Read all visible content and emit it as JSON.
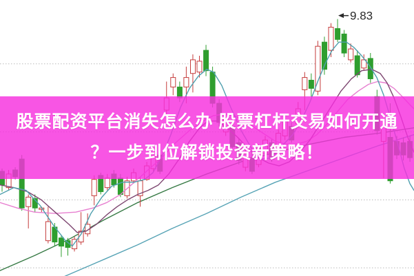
{
  "banner": {
    "line1": "股票配资平台消失怎么办 股票杠杆交易如何开通",
    "line2": "？一步到位解锁投资新策略！",
    "bg_color": "#f730de",
    "text_color": "#ffffff"
  },
  "chart_data": {
    "type": "candlestick",
    "title": "",
    "xlabel": "",
    "ylabel": "",
    "ylim": [
      7.94,
      9.97
    ],
    "gridline_prices": [
      9.5,
      9.0,
      8.5,
      8.0
    ],
    "grid_style": "dotted",
    "legend": "none",
    "x_start": 3,
    "x_step": 9.55,
    "high_label": {
      "text": "9.83",
      "candle_index": 51
    },
    "colors": {
      "up": "#c53b3b",
      "down": "#2f9e2f",
      "ma_short_teal": "#4f9fae",
      "ma_mid_purple": "#7d4670",
      "ma_pink": "#e77fd0",
      "ma_dark_green": "#377a45",
      "ma_long_teal": "#56a3b5",
      "grid": "#b9b9b9",
      "label": "#2a2a2a"
    },
    "candles": [
      [
        8.71,
        8.73,
        8.56,
        8.61,
        "d"
      ],
      [
        8.59,
        8.72,
        8.57,
        8.69,
        "u"
      ],
      [
        8.72,
        8.74,
        8.65,
        8.67,
        "d"
      ],
      [
        8.8,
        8.83,
        8.42,
        8.44,
        "d"
      ],
      [
        8.45,
        8.54,
        8.29,
        8.52,
        "u"
      ],
      [
        8.51,
        8.54,
        8.41,
        8.44,
        "d"
      ],
      [
        8.43,
        8.45,
        8.41,
        8.44,
        "u"
      ],
      [
        8.2,
        8.45,
        8.18,
        8.34,
        "u"
      ],
      [
        8.3,
        8.33,
        8.16,
        8.19,
        "d"
      ],
      [
        8.22,
        8.24,
        8.08,
        8.16,
        "d"
      ],
      [
        8.2,
        8.22,
        8.09,
        8.15,
        "d"
      ],
      [
        8.14,
        8.23,
        8.12,
        8.21,
        "u"
      ],
      [
        8.19,
        8.41,
        8.17,
        8.27,
        "u"
      ],
      [
        8.25,
        8.4,
        8.23,
        8.32,
        "u"
      ],
      [
        8.53,
        8.68,
        8.46,
        8.65,
        "u"
      ],
      [
        8.68,
        8.7,
        8.54,
        8.56,
        "d"
      ],
      [
        8.59,
        8.69,
        8.57,
        8.66,
        "u"
      ],
      [
        8.69,
        8.72,
        8.59,
        8.61,
        "d"
      ],
      [
        8.66,
        8.69,
        8.52,
        8.54,
        "d"
      ],
      [
        8.53,
        8.67,
        8.51,
        8.64,
        "u"
      ],
      [
        8.64,
        8.73,
        8.62,
        8.7,
        "u"
      ],
      [
        8.53,
        8.67,
        8.45,
        8.64,
        "u"
      ],
      [
        8.65,
        8.78,
        8.64,
        8.75,
        "u"
      ],
      [
        8.73,
        8.85,
        8.71,
        8.82,
        "u"
      ],
      [
        8.83,
        8.86,
        8.69,
        8.71,
        "d"
      ],
      [
        9.16,
        9.37,
        9.13,
        9.25,
        "u"
      ],
      [
        9.33,
        9.43,
        9.27,
        9.4,
        "u"
      ],
      [
        9.33,
        9.37,
        9.22,
        9.25,
        "d"
      ],
      [
        9.33,
        9.48,
        9.21,
        9.4,
        "u"
      ],
      [
        9.43,
        9.57,
        9.29,
        9.53,
        "u"
      ],
      [
        9.44,
        9.56,
        9.4,
        9.52,
        "u"
      ],
      [
        9.6,
        9.64,
        9.41,
        9.45,
        "d"
      ],
      [
        9.44,
        9.48,
        9.18,
        9.21,
        "d"
      ],
      [
        9.21,
        9.24,
        9.04,
        9.07,
        "d"
      ],
      [
        9.0,
        9.13,
        8.97,
        9.1,
        "u"
      ],
      [
        9.04,
        9.07,
        8.87,
        8.89,
        "d"
      ],
      [
        8.92,
        8.95,
        8.76,
        8.79,
        "d"
      ],
      [
        8.74,
        8.87,
        8.71,
        8.84,
        "u"
      ],
      [
        8.81,
        8.85,
        8.69,
        8.71,
        "d"
      ],
      [
        8.76,
        8.91,
        8.74,
        8.88,
        "u"
      ],
      [
        8.84,
        8.97,
        8.81,
        8.94,
        "u"
      ],
      [
        8.92,
        8.95,
        8.78,
        8.8,
        "d"
      ],
      [
        8.89,
        9.02,
        8.87,
        8.99,
        "u"
      ],
      [
        8.97,
        9.11,
        8.94,
        9.08,
        "u"
      ],
      [
        9.04,
        9.07,
        8.92,
        8.94,
        "d"
      ],
      [
        9.06,
        9.22,
        9.03,
        9.17,
        "u"
      ],
      [
        9.31,
        9.44,
        9.16,
        9.4,
        "u"
      ],
      [
        9.38,
        9.43,
        9.26,
        9.32,
        "d"
      ],
      [
        9.3,
        9.67,
        9.27,
        9.63,
        "u"
      ],
      [
        9.66,
        9.7,
        9.42,
        9.46,
        "d"
      ],
      [
        9.6,
        9.8,
        9.55,
        9.77,
        "u"
      ],
      [
        9.76,
        9.83,
        9.66,
        9.68,
        "d"
      ],
      [
        9.72,
        9.75,
        9.55,
        9.58,
        "d"
      ],
      [
        9.53,
        9.65,
        9.51,
        9.61,
        "u"
      ],
      [
        9.56,
        9.6,
        9.4,
        9.42,
        "d"
      ],
      [
        9.47,
        9.57,
        9.45,
        9.53,
        "u"
      ],
      [
        9.54,
        9.58,
        9.36,
        9.39,
        "d"
      ],
      [
        9.26,
        9.31,
        8.98,
        9.01,
        "d"
      ],
      [
        8.93,
        9.08,
        8.66,
        9.04,
        "u"
      ],
      [
        8.96,
        9.21,
        8.62,
        8.64,
        "d"
      ],
      [
        8.93,
        8.97,
        8.8,
        8.83,
        "d"
      ],
      [
        8.92,
        8.96,
        8.79,
        8.83,
        "d"
      ],
      [
        8.93,
        8.97,
        8.78,
        8.81,
        "d"
      ]
    ],
    "ma_series": [
      {
        "name": "ma-dark-green",
        "color_key": "ma_dark_green",
        "points": [
          [
            0,
            7.98
          ],
          [
            50,
            8.09
          ],
          [
            100,
            8.21
          ],
          [
            150,
            8.35
          ],
          [
            200,
            8.48
          ],
          [
            250,
            8.59
          ],
          [
            300,
            8.69
          ],
          [
            350,
            8.78
          ],
          [
            400,
            8.85
          ],
          [
            450,
            8.91
          ],
          [
            500,
            8.96
          ],
          [
            550,
            8.99
          ],
          [
            601,
            9.03
          ]
        ]
      },
      {
        "name": "ma-long-teal",
        "color_key": "ma_long_teal",
        "points": [
          [
            70,
            7.88
          ],
          [
            95,
            7.94
          ],
          [
            150,
            8.06
          ],
          [
            200,
            8.17
          ],
          [
            250,
            8.29
          ],
          [
            300,
            8.4
          ],
          [
            350,
            8.52
          ],
          [
            400,
            8.63
          ],
          [
            450,
            8.72
          ],
          [
            500,
            8.81
          ],
          [
            550,
            8.9
          ],
          [
            601,
            8.98
          ]
        ]
      },
      {
        "name": "ma-pink",
        "color_key": "ma_pink",
        "points": [
          [
            0,
            8.48
          ],
          [
            25,
            8.44
          ],
          [
            50,
            8.41
          ],
          [
            80,
            8.4
          ],
          [
            110,
            8.41
          ],
          [
            135,
            8.44
          ],
          [
            155,
            8.48
          ],
          [
            175,
            8.54
          ],
          [
            195,
            8.63
          ],
          [
            215,
            8.72
          ],
          [
            235,
            8.81
          ],
          [
            255,
            8.92
          ],
          [
            275,
            9.01
          ],
          [
            295,
            9.08
          ],
          [
            310,
            9.12
          ],
          [
            325,
            9.13
          ],
          [
            340,
            9.12
          ],
          [
            355,
            9.08
          ],
          [
            370,
            9.03
          ],
          [
            385,
            8.98
          ],
          [
            400,
            8.93
          ],
          [
            415,
            8.91
          ],
          [
            430,
            8.91
          ],
          [
            445,
            8.93
          ],
          [
            460,
            8.98
          ],
          [
            475,
            9.06
          ],
          [
            490,
            9.15
          ],
          [
            505,
            9.24
          ],
          [
            520,
            9.3
          ],
          [
            535,
            9.35
          ],
          [
            548,
            9.37
          ],
          [
            560,
            9.36
          ],
          [
            572,
            9.32
          ],
          [
            584,
            9.26
          ],
          [
            595,
            9.2
          ],
          [
            601,
            9.17
          ]
        ]
      },
      {
        "name": "ma-mid-purple",
        "color_key": "ma_mid_purple",
        "points": [
          [
            0,
            8.61
          ],
          [
            20,
            8.59
          ],
          [
            40,
            8.56
          ],
          [
            60,
            8.5
          ],
          [
            80,
            8.41
          ],
          [
            100,
            8.32
          ],
          [
            112,
            8.26
          ],
          [
            125,
            8.27
          ],
          [
            140,
            8.32
          ],
          [
            155,
            8.39
          ],
          [
            170,
            8.45
          ],
          [
            185,
            8.5
          ],
          [
            200,
            8.54
          ],
          [
            215,
            8.57
          ],
          [
            230,
            8.61
          ],
          [
            245,
            8.69
          ],
          [
            260,
            8.8
          ],
          [
            275,
            8.93
          ],
          [
            290,
            9.03
          ],
          [
            302,
            9.08
          ],
          [
            315,
            9.08
          ],
          [
            330,
            9.03
          ],
          [
            345,
            8.96
          ],
          [
            360,
            8.88
          ],
          [
            375,
            8.81
          ],
          [
            390,
            8.77
          ],
          [
            405,
            8.75
          ],
          [
            420,
            8.78
          ],
          [
            435,
            8.85
          ],
          [
            450,
            8.94
          ],
          [
            465,
            9.06
          ],
          [
            480,
            9.18
          ],
          [
            495,
            9.3
          ],
          [
            510,
            9.39
          ],
          [
            525,
            9.45
          ],
          [
            540,
            9.46
          ],
          [
            552,
            9.43
          ],
          [
            562,
            9.36
          ],
          [
            572,
            9.25
          ],
          [
            582,
            9.11
          ],
          [
            592,
            8.96
          ],
          [
            601,
            8.85
          ]
        ]
      },
      {
        "name": "ma-short-teal",
        "color_key": "ma_short_teal",
        "points": [
          [
            0,
            8.54
          ],
          [
            20,
            8.59
          ],
          [
            38,
            8.57
          ],
          [
            58,
            8.46
          ],
          [
            78,
            8.31
          ],
          [
            95,
            8.2
          ],
          [
            105,
            8.16
          ],
          [
            118,
            8.25
          ],
          [
            132,
            8.4
          ],
          [
            148,
            8.52
          ],
          [
            162,
            8.6
          ],
          [
            178,
            8.63
          ],
          [
            195,
            8.63
          ],
          [
            210,
            8.65
          ],
          [
            222,
            8.7
          ],
          [
            235,
            8.82
          ],
          [
            248,
            8.98
          ],
          [
            262,
            9.18
          ],
          [
            275,
            9.32
          ],
          [
            288,
            9.41
          ],
          [
            300,
            9.46
          ],
          [
            310,
            9.44
          ],
          [
            322,
            9.34
          ],
          [
            335,
            9.18
          ],
          [
            350,
            9.01
          ],
          [
            365,
            8.88
          ],
          [
            380,
            8.8
          ],
          [
            395,
            8.81
          ],
          [
            410,
            8.9
          ],
          [
            425,
            8.98
          ],
          [
            438,
            9.09
          ],
          [
            450,
            9.22
          ],
          [
            462,
            9.38
          ],
          [
            472,
            9.5
          ],
          [
            482,
            9.6
          ],
          [
            492,
            9.66
          ],
          [
            503,
            9.66
          ],
          [
            514,
            9.62
          ],
          [
            525,
            9.56
          ],
          [
            536,
            9.49
          ],
          [
            547,
            9.4
          ],
          [
            557,
            9.27
          ],
          [
            567,
            9.1
          ],
          [
            577,
            8.92
          ],
          [
            587,
            8.73
          ],
          [
            595,
            8.62
          ],
          [
            601,
            8.57
          ]
        ]
      }
    ]
  }
}
